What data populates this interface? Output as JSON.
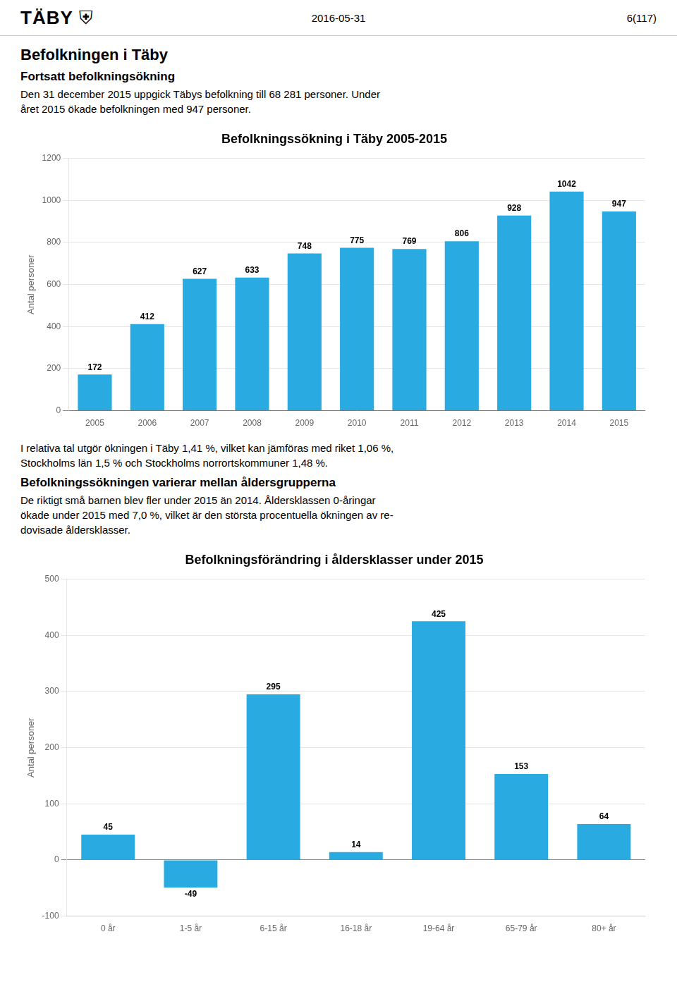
{
  "page": {
    "logo": "TÄBY",
    "logo_icon": "⛨",
    "header_date": "2016-05-31",
    "header_page": "6(117)",
    "title": "Befolkningen i Täby",
    "sections": [
      {
        "heading": "Fortsatt befolkningsökning",
        "lines": [
          "Den 31 december 2015 uppgick Täbys befolkning till 68 281 personer. Under",
          "året 2015 ökade befolkningen med 947 personer."
        ]
      },
      {
        "lines": [
          "I relativa tal utgör ökningen i Täby 1,41 %, vilket kan jämföras med riket 1,06 %,",
          "Stockholms län 1,5 % och Stockholms norrortskommuner 1,48 %."
        ]
      },
      {
        "heading": "Befolkningssökningen varierar mellan åldersgrupperna",
        "lines": [
          "De riktigt små barnen blev fler under 2015 än 2014. Åldersklassen 0-åringar",
          "ökade under 2015 med 7,0 %, vilket är den största procentuella ökningen av re-",
          "dovisade åldersklasser."
        ]
      }
    ]
  },
  "chart_data": [
    {
      "type": "bar",
      "title": "Befolkningssökning i Täby 2005-2015",
      "ylabel": "Antal personer",
      "categories": [
        "2005",
        "2006",
        "2007",
        "2008",
        "2009",
        "2010",
        "2011",
        "2012",
        "2013",
        "2014",
        "2015"
      ],
      "values": [
        172,
        412,
        627,
        633,
        748,
        775,
        769,
        806,
        928,
        1042,
        947
      ],
      "color": "#29ABE2",
      "ylim": [
        0,
        1200
      ],
      "yticks": [
        0,
        200,
        400,
        600,
        800,
        1000,
        1200
      ],
      "grid": true,
      "data_labels": true
    },
    {
      "type": "bar",
      "title": "Befolkningsförändring i åldersklasser under 2015",
      "ylabel": "Antal personer",
      "categories": [
        "0 år",
        "1-5 år",
        "6-15 år",
        "16-18 år",
        "19-64 år",
        "65-79 år",
        "80+ år"
      ],
      "values": [
        45,
        -49,
        295,
        14,
        425,
        153,
        64
      ],
      "color": "#29ABE2",
      "ylim": [
        -100,
        500
      ],
      "yticks": [
        -100,
        0,
        100,
        200,
        300,
        400,
        500
      ],
      "grid": true,
      "data_labels": true
    }
  ]
}
